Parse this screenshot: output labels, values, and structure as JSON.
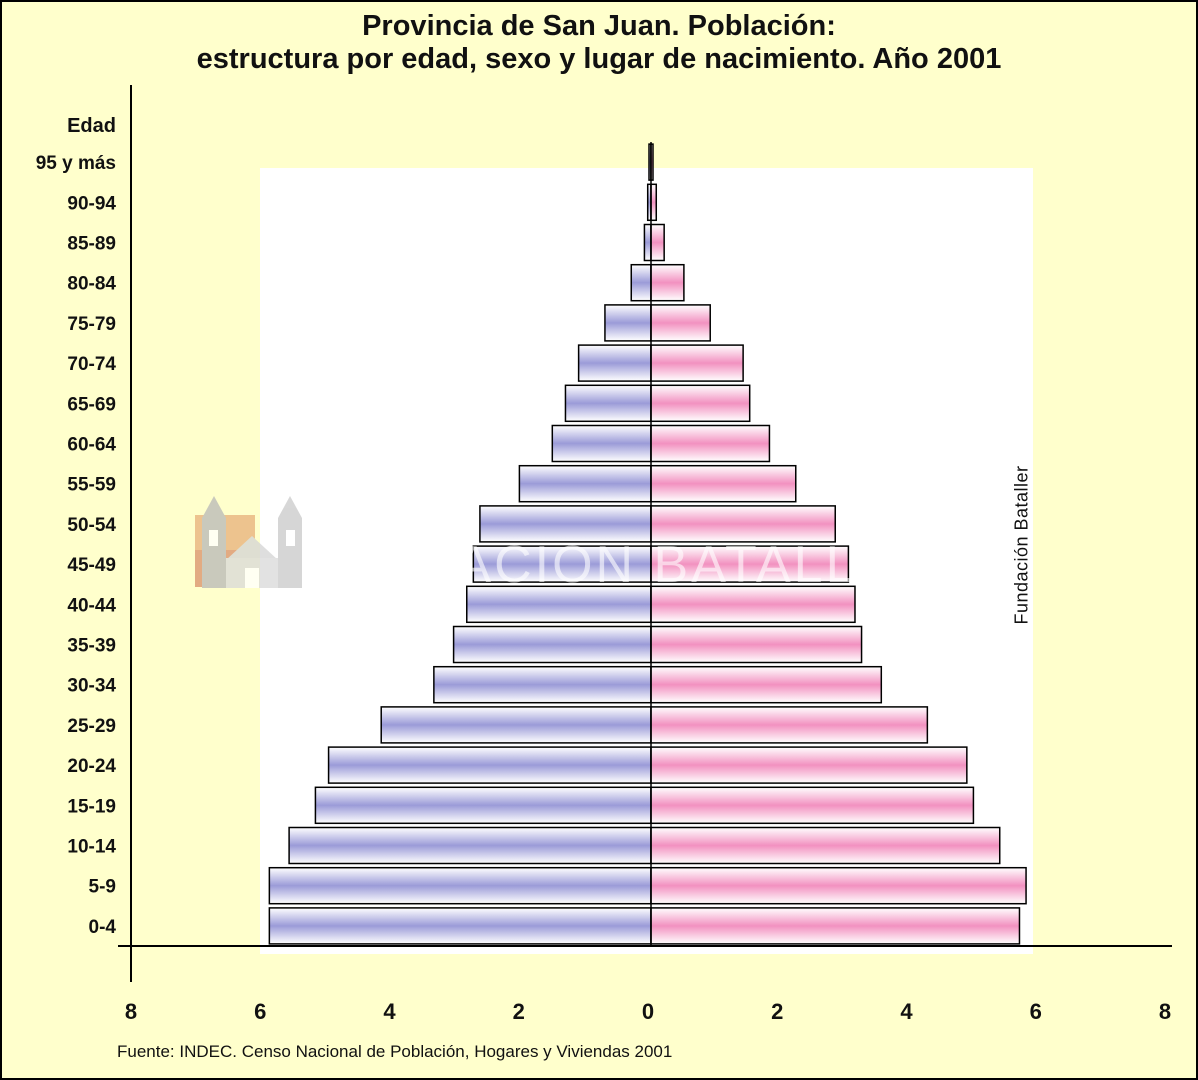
{
  "chart_data": {
    "type": "bar",
    "subtype": "population-pyramid",
    "title": [
      "Provincia de San Juan. Población:",
      "estructura por edad, sexo y lugar de nacimiento. Año 2001"
    ],
    "ylabel": "Edad",
    "categories": [
      "0-4",
      "5-9",
      "10-14",
      "15-19",
      "20-24",
      "25-29",
      "30-34",
      "35-39",
      "40-44",
      "45-49",
      "50-54",
      "55-59",
      "60-64",
      "65-69",
      "70-74",
      "75-79",
      "80-84",
      "85-89",
      "90-94",
      "95 y más"
    ],
    "series": [
      {
        "side": "left",
        "color": "#9b9bd8",
        "values": [
          5.8,
          5.8,
          5.5,
          5.1,
          4.9,
          4.1,
          3.3,
          3.0,
          2.8,
          2.7,
          2.6,
          2.0,
          1.5,
          1.3,
          1.1,
          0.7,
          0.3,
          0.1,
          0.05,
          0.01
        ]
      },
      {
        "side": "right",
        "color": "#f291c0",
        "values": [
          5.6,
          5.7,
          5.3,
          4.9,
          4.8,
          4.2,
          3.5,
          3.2,
          3.1,
          3.0,
          2.8,
          2.2,
          1.8,
          1.5,
          1.4,
          0.9,
          0.5,
          0.2,
          0.08,
          0.02
        ]
      }
    ],
    "xticks": [
      "8",
      "6",
      "4",
      "2",
      "0",
      "2",
      "4",
      "6",
      "8"
    ],
    "xlim": [
      -8,
      8
    ],
    "grid": false,
    "annotations": {
      "source": "Fuente: INDEC. Censo Nacional de Población, Hogares y Viviendas 2001",
      "watermark_vertical": "Fundación Bataller",
      "watermark_horizontal": "FUNDACION BATALLER"
    }
  },
  "colors": {
    "background": "#ffffcc",
    "plot_area": "#ffffff",
    "male_bar": "#9b9bd8",
    "female_bar": "#f291c0",
    "axis": "#000000"
  },
  "icons": [
    "church-logo-icon"
  ]
}
